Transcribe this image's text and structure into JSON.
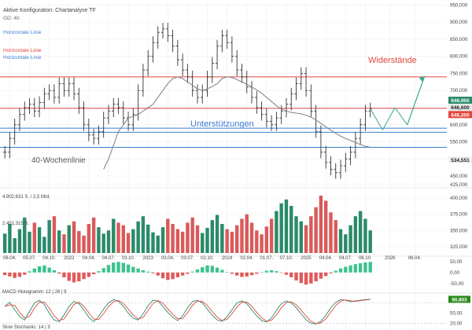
{
  "chart_data": {
    "type": "line",
    "indicator": "Aktive Konfiguration: Chartanalyse TF",
    "gd_label": "GD: 40",
    "hline_labels": [
      {
        "text": "Horizontale Linie",
        "color": "#3b7fd1"
      },
      {
        "text": "Horizontale Linie",
        "color": "#e0473f"
      },
      {
        "text": "Horizontale Linie",
        "color": "#3b7fd1"
      }
    ],
    "annotations": {
      "resistance": "Widerstände",
      "support": "Unterstützungen",
      "ma_label": "40-Wochenlinie"
    },
    "price_axis": {
      "ticks": [
        "950,000",
        "900,000",
        "850,000",
        "800,000",
        "750,000",
        "700,000",
        "650,000",
        "600,000",
        "550,000",
        "500,000",
        "450,000",
        "425,000"
      ],
      "tick_values": [
        950000,
        900000,
        850000,
        800000,
        750000,
        700000,
        650000,
        600000,
        550000,
        500000,
        450000,
        425000
      ],
      "ylim": [
        425000,
        960000
      ]
    },
    "levels": {
      "resistance": [
        740000,
        648000
      ],
      "support": [
        590000,
        578000,
        534000
      ]
    },
    "price_tags": [
      {
        "text": "646,900",
        "value": 646900,
        "bg": "#2a8a6a"
      },
      {
        "text": "646,600",
        "value": 646600,
        "bg": "#e8e8e8"
      },
      {
        "text": "646,300",
        "value": 646300,
        "bg": "#e0473f"
      },
      {
        "text": "534,551",
        "value": 534551,
        "bg": "#f0f0f0"
      }
    ],
    "close_series": [
      520000,
      560000,
      600000,
      630000,
      650000,
      660000,
      640000,
      665000,
      690000,
      700000,
      680000,
      720000,
      700000,
      720000,
      690000,
      650000,
      600000,
      570000,
      560000,
      580000,
      620000,
      640000,
      660000,
      650000,
      620000,
      600000,
      630000,
      700000,
      760000,
      800000,
      840000,
      870000,
      880000,
      860000,
      830000,
      790000,
      760000,
      740000,
      700000,
      680000,
      700000,
      740000,
      780000,
      830000,
      860000,
      840000,
      800000,
      760000,
      740000,
      710000,
      680000,
      650000,
      630000,
      610000,
      600000,
      620000,
      640000,
      660000,
      690000,
      720000,
      750000,
      700000,
      640000,
      580000,
      520000,
      490000,
      470000,
      460000,
      480000,
      500000,
      520000,
      560000,
      600000,
      640000,
      646900
    ],
    "ma40_series": [
      null,
      null,
      null,
      null,
      null,
      null,
      null,
      null,
      null,
      null,
      null,
      null,
      null,
      null,
      null,
      null,
      null,
      null,
      null,
      null,
      470000,
      500000,
      540000,
      580000,
      600000,
      620000,
      625000,
      630000,
      640000,
      650000,
      660000,
      680000,
      700000,
      720000,
      735000,
      740000,
      735000,
      725000,
      715000,
      705000,
      700000,
      705000,
      712000,
      720000,
      735000,
      740000,
      738000,
      732000,
      725000,
      718000,
      710000,
      702000,
      692000,
      680000,
      668000,
      656000,
      646000,
      640000,
      636000,
      634000,
      632000,
      628000,
      622000,
      614000,
      604000,
      594000,
      584000,
      575000,
      567000,
      560000,
      554000,
      548000,
      542000,
      537000,
      534551
    ],
    "volume_axis": {
      "ticks": [
        "400,000",
        "375,000",
        "350,000",
        "325,000"
      ],
      "tick_values": [
        400000,
        375000,
        350000,
        325000
      ],
      "ylim": [
        315000,
        410000
      ]
    },
    "volume_labels": [
      "4.902,631 S. / 2,5 Mrd.",
      "2.451,315 S."
    ],
    "volume_series": [
      345000,
      360000,
      338000,
      352000,
      370000,
      348000,
      362000,
      355000,
      340000,
      366000,
      372000,
      350000,
      344000,
      358000,
      364000,
      349000,
      342000,
      360000,
      370000,
      355000,
      345000,
      350000,
      368000,
      362000,
      358000,
      346000,
      352000,
      364000,
      372000,
      359000,
      347000,
      342000,
      355000,
      368000,
      360000,
      352000,
      348000,
      362000,
      370000,
      358000,
      346000,
      354000,
      366000,
      374000,
      360000,
      352000,
      348000,
      358000,
      368000,
      375000,
      362000,
      350000,
      344000,
      356000,
      368000,
      380000,
      392000,
      398000,
      388000,
      372000,
      364000,
      358000,
      372000,
      386000,
      404000,
      396000,
      378000,
      366000,
      352000,
      344000,
      358000,
      372000,
      380000,
      368000,
      350000
    ],
    "macd_axis": {
      "ticks": [
        "50,00",
        "0,00",
        "-50,00"
      ],
      "tick_values": [
        50,
        0,
        -50
      ],
      "ylim": [
        -65,
        60
      ]
    },
    "macd_title": "MACD Histogramm: 12 | 26 | 9",
    "macd_hist": [
      -12,
      -18,
      -25,
      -20,
      -10,
      5,
      18,
      28,
      32,
      22,
      10,
      -5,
      -22,
      -38,
      -45,
      -40,
      -30,
      -20,
      -8,
      6,
      20,
      34,
      45,
      48,
      44,
      36,
      26,
      18,
      10,
      4,
      -4,
      -14,
      -26,
      -34,
      -30,
      -22,
      -14,
      -6,
      4,
      14,
      24,
      32,
      30,
      22,
      12,
      2,
      -6,
      -14,
      -20,
      -18,
      -12,
      -6,
      2,
      8,
      10,
      6,
      -2,
      -10,
      -22,
      -36,
      -48,
      -55,
      -50,
      -40,
      -28,
      -16,
      -4,
      8,
      18,
      26,
      32,
      38,
      42,
      46,
      48
    ],
    "stoch_axis": {
      "ticks": [
        "90,803",
        "50,00",
        "20,00"
      ],
      "tick_values": [
        90.803,
        50,
        20
      ],
      "ylim": [
        5,
        100
      ]
    },
    "stoch_title": "Slow Stochastic: 14 | 3",
    "stoch_k": [
      70,
      82,
      60,
      40,
      30,
      55,
      80,
      88,
      75,
      50,
      30,
      25,
      45,
      70,
      85,
      78,
      60,
      38,
      25,
      40,
      62,
      80,
      90,
      85,
      70,
      50,
      35,
      30,
      48,
      72,
      88,
      86,
      70,
      52,
      38,
      28,
      42,
      66,
      84,
      88,
      80,
      62,
      44,
      30,
      26,
      40,
      60,
      80,
      86,
      78,
      60,
      42,
      28,
      24,
      36,
      58,
      78,
      86,
      80,
      66,
      48,
      30,
      20,
      18,
      26,
      44,
      66,
      82,
      90,
      88,
      84,
      86,
      88,
      90,
      90.803
    ],
    "x_ticks": [
      "06.04.",
      "05.07.",
      "04.10.",
      "2022",
      "04.04.",
      "04.07.",
      "03.10.",
      "2023",
      "03.04.",
      "03.07.",
      "02.10.",
      "2024",
      "02.04.",
      "01.07.",
      "07.10.",
      "2025",
      "04.04.",
      "04.07.",
      "06.10.",
      "2026",
      "06.04."
    ],
    "x_tick_idx": [
      1,
      5,
      9,
      13,
      17,
      21,
      25,
      29,
      33,
      37,
      41,
      45,
      49,
      53,
      57,
      61,
      65,
      69,
      73,
      78,
      83
    ]
  }
}
